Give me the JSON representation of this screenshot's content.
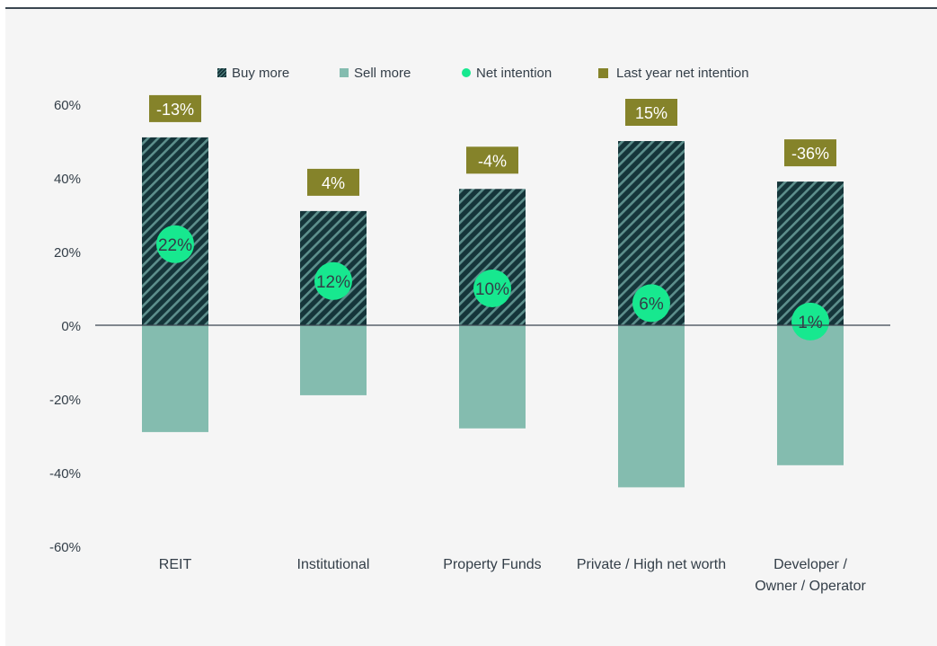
{
  "chart_data": {
    "type": "bar",
    "categories": [
      "REIT",
      "Institutional",
      "Property Funds",
      "Private / High net worth",
      "Developer / Owner / Operator"
    ],
    "category_lines": [
      [
        "REIT"
      ],
      [
        "Institutional"
      ],
      [
        "Property Funds"
      ],
      [
        "Private / High net worth"
      ],
      [
        "Developer /",
        "Owner / Operator"
      ]
    ],
    "series": [
      {
        "name": "Buy more",
        "values": [
          51,
          31,
          37,
          50,
          39
        ]
      },
      {
        "name": "Sell more",
        "values": [
          -29,
          -19,
          -28,
          -44,
          -38
        ]
      },
      {
        "name": "Net intention",
        "values": [
          22,
          12,
          10,
          6,
          1
        ]
      },
      {
        "name": "Last year net intention",
        "values": [
          -13,
          4,
          -4,
          15,
          -36
        ]
      }
    ],
    "net_labels": [
      "22%",
      "12%",
      "10%",
      "6%",
      "1%"
    ],
    "last_year_labels": [
      "-13%",
      "4%",
      "-4%",
      "15%",
      "-36%"
    ],
    "ylim": [
      -60,
      60
    ],
    "yticks": [
      60,
      40,
      20,
      0,
      -20,
      -40,
      -60
    ],
    "ytick_labels": [
      "60%",
      "40%",
      "20%",
      "0%",
      "-20%",
      "-40%",
      "-60%"
    ],
    "legend": [
      {
        "label": "Buy more",
        "marker": "hatched-square"
      },
      {
        "label": "Sell more",
        "marker": "square"
      },
      {
        "label": "Net intention",
        "marker": "circle"
      },
      {
        "label": "Last year net intention",
        "marker": "square"
      }
    ],
    "legend_position": "top",
    "colors": {
      "buy": "#15353a",
      "buy_hatch": "#5d8f8c",
      "sell": "#84bcaf",
      "net": "#17e88f",
      "last_year": "#85832a",
      "axis": "#3a4650",
      "text": "#333e48"
    }
  }
}
